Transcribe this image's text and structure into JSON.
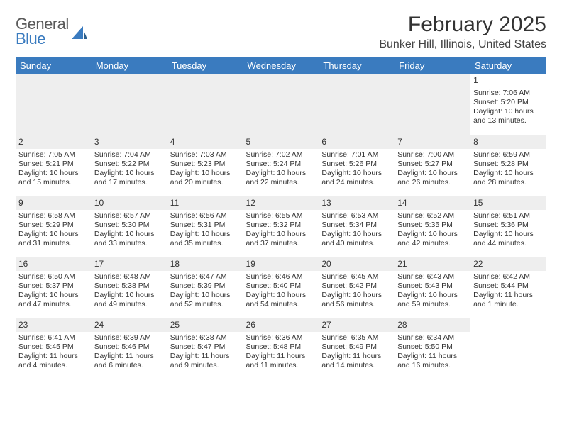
{
  "logo": {
    "word1": "General",
    "word2": "Blue"
  },
  "title": "February 2025",
  "location": "Bunker Hill, Illinois, United States",
  "header_bg": "#3a7bbf",
  "rule_color": "#2c5f8d",
  "day_headers": [
    "Sunday",
    "Monday",
    "Tuesday",
    "Wednesday",
    "Thursday",
    "Friday",
    "Saturday"
  ],
  "weeks": [
    [
      {
        "n": "",
        "lines": []
      },
      {
        "n": "",
        "lines": []
      },
      {
        "n": "",
        "lines": []
      },
      {
        "n": "",
        "lines": []
      },
      {
        "n": "",
        "lines": []
      },
      {
        "n": "",
        "lines": []
      },
      {
        "n": "1",
        "lines": [
          "Sunrise: 7:06 AM",
          "Sunset: 5:20 PM",
          "Daylight: 10 hours and 13 minutes."
        ]
      }
    ],
    [
      {
        "n": "2",
        "lines": [
          "Sunrise: 7:05 AM",
          "Sunset: 5:21 PM",
          "Daylight: 10 hours and 15 minutes."
        ]
      },
      {
        "n": "3",
        "lines": [
          "Sunrise: 7:04 AM",
          "Sunset: 5:22 PM",
          "Daylight: 10 hours and 17 minutes."
        ]
      },
      {
        "n": "4",
        "lines": [
          "Sunrise: 7:03 AM",
          "Sunset: 5:23 PM",
          "Daylight: 10 hours and 20 minutes."
        ]
      },
      {
        "n": "5",
        "lines": [
          "Sunrise: 7:02 AM",
          "Sunset: 5:24 PM",
          "Daylight: 10 hours and 22 minutes."
        ]
      },
      {
        "n": "6",
        "lines": [
          "Sunrise: 7:01 AM",
          "Sunset: 5:26 PM",
          "Daylight: 10 hours and 24 minutes."
        ]
      },
      {
        "n": "7",
        "lines": [
          "Sunrise: 7:00 AM",
          "Sunset: 5:27 PM",
          "Daylight: 10 hours and 26 minutes."
        ]
      },
      {
        "n": "8",
        "lines": [
          "Sunrise: 6:59 AM",
          "Sunset: 5:28 PM",
          "Daylight: 10 hours and 28 minutes."
        ]
      }
    ],
    [
      {
        "n": "9",
        "lines": [
          "Sunrise: 6:58 AM",
          "Sunset: 5:29 PM",
          "Daylight: 10 hours and 31 minutes."
        ]
      },
      {
        "n": "10",
        "lines": [
          "Sunrise: 6:57 AM",
          "Sunset: 5:30 PM",
          "Daylight: 10 hours and 33 minutes."
        ]
      },
      {
        "n": "11",
        "lines": [
          "Sunrise: 6:56 AM",
          "Sunset: 5:31 PM",
          "Daylight: 10 hours and 35 minutes."
        ]
      },
      {
        "n": "12",
        "lines": [
          "Sunrise: 6:55 AM",
          "Sunset: 5:32 PM",
          "Daylight: 10 hours and 37 minutes."
        ]
      },
      {
        "n": "13",
        "lines": [
          "Sunrise: 6:53 AM",
          "Sunset: 5:34 PM",
          "Daylight: 10 hours and 40 minutes."
        ]
      },
      {
        "n": "14",
        "lines": [
          "Sunrise: 6:52 AM",
          "Sunset: 5:35 PM",
          "Daylight: 10 hours and 42 minutes."
        ]
      },
      {
        "n": "15",
        "lines": [
          "Sunrise: 6:51 AM",
          "Sunset: 5:36 PM",
          "Daylight: 10 hours and 44 minutes."
        ]
      }
    ],
    [
      {
        "n": "16",
        "lines": [
          "Sunrise: 6:50 AM",
          "Sunset: 5:37 PM",
          "Daylight: 10 hours and 47 minutes."
        ]
      },
      {
        "n": "17",
        "lines": [
          "Sunrise: 6:48 AM",
          "Sunset: 5:38 PM",
          "Daylight: 10 hours and 49 minutes."
        ]
      },
      {
        "n": "18",
        "lines": [
          "Sunrise: 6:47 AM",
          "Sunset: 5:39 PM",
          "Daylight: 10 hours and 52 minutes."
        ]
      },
      {
        "n": "19",
        "lines": [
          "Sunrise: 6:46 AM",
          "Sunset: 5:40 PM",
          "Daylight: 10 hours and 54 minutes."
        ]
      },
      {
        "n": "20",
        "lines": [
          "Sunrise: 6:45 AM",
          "Sunset: 5:42 PM",
          "Daylight: 10 hours and 56 minutes."
        ]
      },
      {
        "n": "21",
        "lines": [
          "Sunrise: 6:43 AM",
          "Sunset: 5:43 PM",
          "Daylight: 10 hours and 59 minutes."
        ]
      },
      {
        "n": "22",
        "lines": [
          "Sunrise: 6:42 AM",
          "Sunset: 5:44 PM",
          "Daylight: 11 hours and 1 minute."
        ]
      }
    ],
    [
      {
        "n": "23",
        "lines": [
          "Sunrise: 6:41 AM",
          "Sunset: 5:45 PM",
          "Daylight: 11 hours and 4 minutes."
        ]
      },
      {
        "n": "24",
        "lines": [
          "Sunrise: 6:39 AM",
          "Sunset: 5:46 PM",
          "Daylight: 11 hours and 6 minutes."
        ]
      },
      {
        "n": "25",
        "lines": [
          "Sunrise: 6:38 AM",
          "Sunset: 5:47 PM",
          "Daylight: 11 hours and 9 minutes."
        ]
      },
      {
        "n": "26",
        "lines": [
          "Sunrise: 6:36 AM",
          "Sunset: 5:48 PM",
          "Daylight: 11 hours and 11 minutes."
        ]
      },
      {
        "n": "27",
        "lines": [
          "Sunrise: 6:35 AM",
          "Sunset: 5:49 PM",
          "Daylight: 11 hours and 14 minutes."
        ]
      },
      {
        "n": "28",
        "lines": [
          "Sunrise: 6:34 AM",
          "Sunset: 5:50 PM",
          "Daylight: 11 hours and 16 minutes."
        ]
      },
      {
        "n": "",
        "lines": []
      }
    ]
  ]
}
